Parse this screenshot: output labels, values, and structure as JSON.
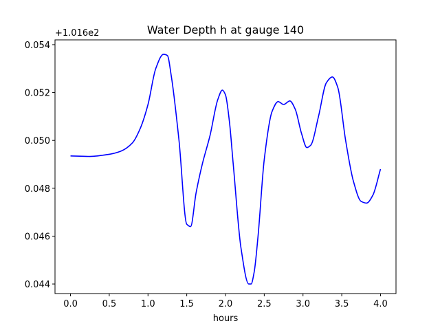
{
  "chart_data": {
    "type": "line",
    "title": "Water Depth h at gauge 140",
    "xlabel": "hours",
    "ylabel": "",
    "y_offset_label": "+1.016e2",
    "y_offset_value": 101.6,
    "xlim": [
      -0.2,
      4.2
    ],
    "ylim": [
      0.0436,
      0.0542
    ],
    "x_ticks": [
      0.0,
      0.5,
      1.0,
      1.5,
      2.0,
      2.5,
      3.0,
      3.5,
      4.0
    ],
    "x_tick_labels": [
      "0.0",
      "0.5",
      "1.0",
      "1.5",
      "2.0",
      "2.5",
      "3.0",
      "3.5",
      "4.0"
    ],
    "y_ticks": [
      0.044,
      0.046,
      0.048,
      0.05,
      0.052,
      0.054
    ],
    "y_tick_labels": [
      "0.044",
      "0.046",
      "0.048",
      "0.050",
      "0.052",
      "0.054"
    ],
    "grid": false,
    "series": [
      {
        "color": "#0000ff",
        "x": [
          0.0,
          0.25,
          0.5,
          0.65,
          0.8,
          0.9,
          1.0,
          1.1,
          1.2,
          1.25,
          1.3,
          1.4,
          1.5,
          1.55,
          1.62,
          1.7,
          1.8,
          1.9,
          1.96,
          2.0,
          2.05,
          2.1,
          2.2,
          2.3,
          2.33,
          2.37,
          2.42,
          2.5,
          2.6,
          2.68,
          2.75,
          2.83,
          2.9,
          2.98,
          3.05,
          3.1,
          3.2,
          3.3,
          3.38,
          3.45,
          3.55,
          3.65,
          3.75,
          3.82,
          3.9,
          4.0
        ],
        "y": [
          0.04935,
          0.04933,
          0.04942,
          0.04955,
          0.0499,
          0.0505,
          0.0515,
          0.053,
          0.0536,
          0.05355,
          0.0527,
          0.05,
          0.0465,
          0.0464,
          0.0478,
          0.049,
          0.0502,
          0.0517,
          0.0521,
          0.0519,
          0.0508,
          0.049,
          0.0455,
          0.044,
          0.044,
          0.0445,
          0.046,
          0.0492,
          0.0512,
          0.05162,
          0.0515,
          0.05165,
          0.0513,
          0.0503,
          0.0497,
          0.0498,
          0.051,
          0.0524,
          0.05265,
          0.0522,
          0.05,
          0.0483,
          0.04745,
          0.04738,
          0.0477,
          0.0488
        ]
      }
    ]
  }
}
